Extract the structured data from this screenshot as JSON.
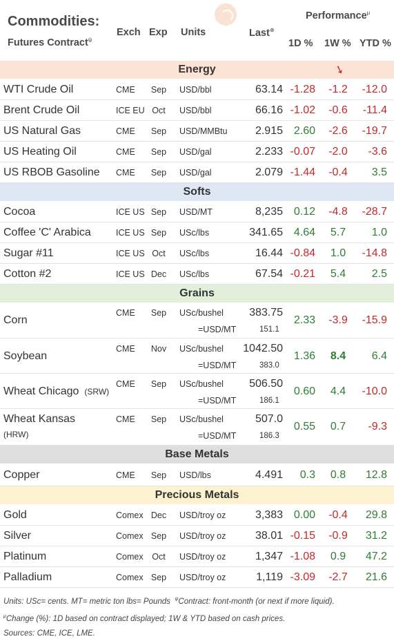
{
  "header": {
    "title": "Commodities:",
    "subtitle": "Futures Contract",
    "subtitle_mark": "ψ",
    "col_exch": "Exch",
    "col_exp": "Exp",
    "col_units": "Units",
    "col_last": "Last",
    "col_last_mark": "⊕",
    "performance": "Performance",
    "performance_mark": "μ",
    "col_1d": "1D %",
    "col_1w": "1W %",
    "col_ytd": "YTD %"
  },
  "sections": {
    "energy": "Energy",
    "softs": "Softs",
    "grains": "Grains",
    "base_metals": "Base Metals",
    "precious_metals": "Precious Metals"
  },
  "energy": [
    {
      "name": "WTI Crude Oil",
      "exch": "CME",
      "exp": "Sep",
      "units": "USD/bbl",
      "last": "63.14",
      "d1": "-1.28",
      "w1": "-1.2",
      "ytd": "-12.0"
    },
    {
      "name": "Brent Crude Oil",
      "exch": "ICE EU",
      "exp": "Oct",
      "units": "USD/bbl",
      "last": "66.16",
      "d1": "-1.02",
      "w1": "-0.6",
      "ytd": "-11.4"
    },
    {
      "name": "US Natural Gas",
      "exch": "CME",
      "exp": "Sep",
      "units": "USD/MMBtu",
      "last": "2.915",
      "d1": "2.60",
      "w1": "-2.6",
      "ytd": "-19.7"
    },
    {
      "name": "US Heating Oil",
      "exch": "CME",
      "exp": "Sep",
      "units": "USD/gal",
      "last": "2.233",
      "d1": "-0.07",
      "w1": "-2.0",
      "ytd": "-3.6"
    },
    {
      "name": "US RBOB Gasoline",
      "exch": "CME",
      "exp": "Sep",
      "units": "USD/gal",
      "last": "2.079",
      "d1": "-1.44",
      "w1": "-0.4",
      "ytd": "3.5"
    }
  ],
  "softs": [
    {
      "name": "Cocoa",
      "exch": "ICE US",
      "exp": "Sep",
      "units": "USD/MT",
      "last": "8,235",
      "d1": "0.12",
      "w1": "-4.8",
      "ytd": "-28.7"
    },
    {
      "name": "Coffee 'C' Arabica",
      "exch": "ICE US",
      "exp": "Sep",
      "units": "USc/lbs",
      "last": "341.65",
      "d1": "4.64",
      "w1": "5.7",
      "ytd": "1.0"
    },
    {
      "name": "Sugar #11",
      "exch": "ICE US",
      "exp": "Oct",
      "units": "USc/lbs",
      "last": "16.44",
      "d1": "-0.84",
      "w1": "1.0",
      "ytd": "-14.8"
    },
    {
      "name": "Cotton #2",
      "exch": "ICE US",
      "exp": "Dec",
      "units": "USc/lbs",
      "last": "67.54",
      "d1": "-0.21",
      "w1": "5.4",
      "ytd": "2.5"
    }
  ],
  "grains": [
    {
      "name": "Corn",
      "name_suffix": "",
      "exch": "CME",
      "exp": "Sep",
      "units": "USc/bushel",
      "last": "383.75",
      "usd_label": "=USD/MT",
      "usd_value": "151.1",
      "d1": "2.33",
      "w1": "-3.9",
      "ytd": "-15.9"
    },
    {
      "name": "Soybean",
      "name_suffix": "",
      "exch": "CME",
      "exp": "Nov",
      "units": "USc/bushel",
      "last": "1042.50",
      "usd_label": "=USD/MT",
      "usd_value": "383.0",
      "d1": "1.36",
      "w1": "8.4",
      "ytd": "6.4"
    },
    {
      "name": "Wheat Chicago",
      "name_suffix": "(SRW)",
      "exch": "CME",
      "exp": "Sep",
      "units": "USc/bushel",
      "last": "506.50",
      "usd_label": "=USD/MT",
      "usd_value": "186.1",
      "d1": "0.60",
      "w1": "4.4",
      "ytd": "-10.0"
    },
    {
      "name": "Wheat Kansas",
      "name_suffix": "(HRW)",
      "exch": "CME",
      "exp": "Sep",
      "units": "USc/bushel",
      "last": "507.0",
      "usd_label": "=USD/MT",
      "usd_value": "186.3",
      "d1": "0.55",
      "w1": "0.7",
      "ytd": "-9.3"
    }
  ],
  "base_metals": [
    {
      "name": "Copper",
      "exch": "CME",
      "exp": "Sep",
      "units": "USD/lbs",
      "last": "4.491",
      "d1": "0.3",
      "w1": "0.8",
      "ytd": "12.8"
    }
  ],
  "precious_metals": [
    {
      "name": "Gold",
      "exch": "Comex",
      "exp": "Dec",
      "units": "USD/troy oz",
      "last": "3,383",
      "d1": "0.00",
      "w1": "-0.4",
      "ytd": "29.8"
    },
    {
      "name": "Silver",
      "exch": "Comex",
      "exp": "Sep",
      "units": "USD/troy oz",
      "last": "38.01",
      "d1": "-0.15",
      "w1": "-0.9",
      "ytd": "31.2"
    },
    {
      "name": "Platinum",
      "exch": "Comex",
      "exp": "Oct",
      "units": "USD/troy oz",
      "last": "1,347",
      "d1": "-1.08",
      "w1": "0.9",
      "ytd": "47.2"
    },
    {
      "name": "Palladium",
      "exch": "Comex",
      "exp": "Sep",
      "units": "USD/troy oz",
      "last": "1,119",
      "d1": "-3.09",
      "w1": "-2.7",
      "ytd": "21.6"
    }
  ],
  "footer": {
    "line1": "Units: USc= cents.   MT= metric ton    lbs= Pounds",
    "line1_mark": "ψ",
    "line1_rest": "Contract: front-month (or next if more liquid).",
    "line2_mark": "μ",
    "line2": "Change (%): 1D based on contract displayed; 1W & YTD based on cash prices.",
    "line3": "Sources: CME, ICE, LME."
  },
  "colors": {
    "positive": "#2e7d32",
    "negative": "#c62828"
  },
  "icons": {
    "logo": "speech-bubble-logo-icon",
    "weekly_pointer": "red-down-arrow-icon"
  }
}
